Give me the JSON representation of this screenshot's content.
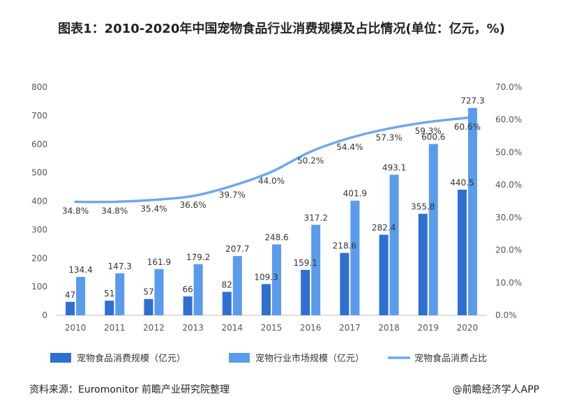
{
  "title": "图表1：2010-2020年中国宠物食品行业消费规模及占比情况(单位：亿元，%)",
  "source": "资料来源：Euromonitor 前瞻产业研究院整理",
  "brand": "@前瞻经济学人APP",
  "chart_data": {
    "type": "bar",
    "categories": [
      "2010",
      "2011",
      "2012",
      "2013",
      "2014",
      "2015",
      "2016",
      "2017",
      "2018",
      "2019",
      "2020"
    ],
    "series": [
      {
        "name": "宠物食品消费规模（亿元）",
        "type": "bar",
        "axis": "left",
        "color": "#2f6fd1",
        "values": [
          47,
          51,
          57,
          66,
          82,
          109.3,
          159.1,
          218.6,
          282.4,
          355.8,
          440.5
        ],
        "labels": [
          "47",
          "51",
          "57",
          "66",
          "82",
          "109.3",
          "159.1",
          "218.6",
          "282.4",
          "355.8",
          "440.5"
        ]
      },
      {
        "name": "宠物行业市场规模（亿元）",
        "type": "bar",
        "axis": "left",
        "color": "#5b9bec",
        "values": [
          134.4,
          147.3,
          161.9,
          179.2,
          207.7,
          248.6,
          317.2,
          401.9,
          493.1,
          600.6,
          727.3
        ],
        "labels": [
          "134.4",
          "147.3",
          "161.9",
          "179.2",
          "207.7",
          "248.6",
          "317.2",
          "401.9",
          "493.1",
          "600.6",
          "727.3"
        ]
      },
      {
        "name": "宠物食品消费占比",
        "type": "line",
        "axis": "right",
        "color": "#6fa8ec",
        "values": [
          34.8,
          34.8,
          35.4,
          36.6,
          39.7,
          44.0,
          50.2,
          54.4,
          57.3,
          59.3,
          60.6
        ],
        "labels": [
          "34.8%",
          "34.8%",
          "35.4%",
          "36.6%",
          "39.7%",
          "44.0%",
          "50.2%",
          "54.4%",
          "57.3%",
          "59.3%",
          "60.6%"
        ]
      }
    ],
    "y_left": {
      "min": 0,
      "max": 800,
      "ticks": [
        "0",
        "100",
        "200",
        "300",
        "400",
        "500",
        "600",
        "700",
        "800"
      ]
    },
    "y_right": {
      "min": 0,
      "max": 70,
      "ticks": [
        "0.0%",
        "10.0%",
        "20.0%",
        "30.0%",
        "40.0%",
        "50.0%",
        "60.0%",
        "70.0%"
      ]
    },
    "grid": false,
    "legend_position": "bottom"
  }
}
